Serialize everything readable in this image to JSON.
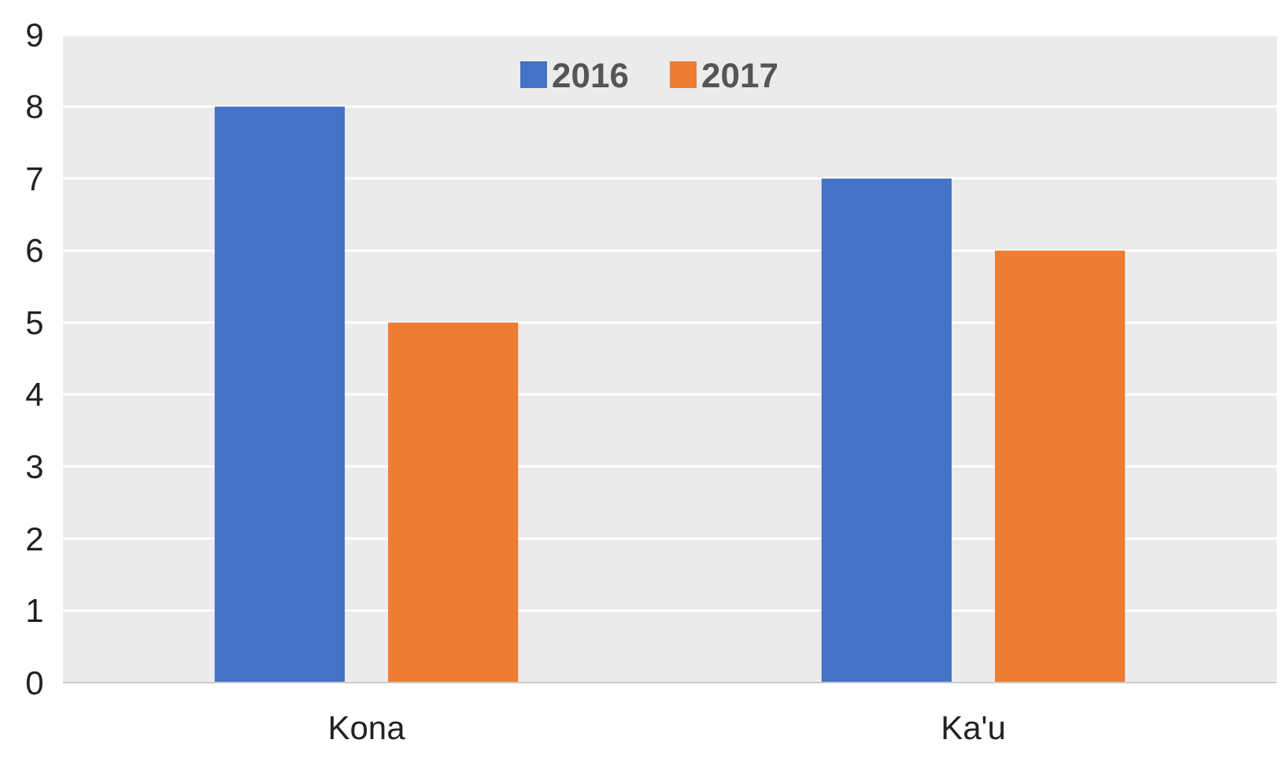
{
  "chart_data": {
    "type": "bar",
    "categories": [
      "Kona",
      "Ka'u"
    ],
    "series": [
      {
        "name": "2016",
        "color": "#4472c4",
        "values": [
          8,
          7
        ]
      },
      {
        "name": "2017",
        "color": "#ed7d31",
        "values": [
          5,
          6
        ]
      }
    ],
    "ylim": [
      0,
      9
    ],
    "yticks": [
      0,
      1,
      2,
      3,
      4,
      5,
      6,
      7,
      8,
      9
    ],
    "grid": "y",
    "legend": "top"
  }
}
